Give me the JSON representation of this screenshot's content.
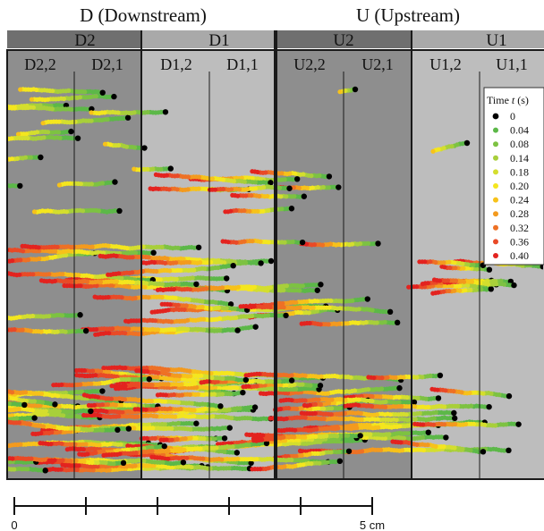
{
  "region_headers": {
    "downstream": "D (Downstream)",
    "upstream": "U (Upstream)"
  },
  "zones": [
    "D2",
    "D1",
    "U2",
    "U1"
  ],
  "subzones": [
    "D2,2",
    "D2,1",
    "D1,2",
    "D1,1",
    "U2,2",
    "U2,1",
    "U1,2",
    "U1,1"
  ],
  "legend": {
    "title_prefix": "Time ",
    "title_var": "t",
    "title_suffix": " (s)",
    "entries": [
      {
        "label": "0",
        "color": "#000000"
      },
      {
        "label": "0.04",
        "color": "#5cb848"
      },
      {
        "label": "0.08",
        "color": "#7dc242"
      },
      {
        "label": "0.14",
        "color": "#a8cf3a"
      },
      {
        "label": "0.18",
        "color": "#d4de2e"
      },
      {
        "label": "0.20",
        "color": "#f4e61e"
      },
      {
        "label": "0.24",
        "color": "#f7c21a"
      },
      {
        "label": "0.28",
        "color": "#f39a1e"
      },
      {
        "label": "0.32",
        "color": "#ee7125"
      },
      {
        "label": "0.36",
        "color": "#e94a27"
      },
      {
        "label": "0.40",
        "color": "#e3231f"
      }
    ]
  },
  "scale_bar": {
    "label_start": "0",
    "label_end": "5 cm"
  },
  "zone_colors": {
    "dark": "#8e8e8e",
    "light": "#bdbdbd",
    "dark_header": "#6f6f6f",
    "light_header": "#a9a9a9"
  }
}
